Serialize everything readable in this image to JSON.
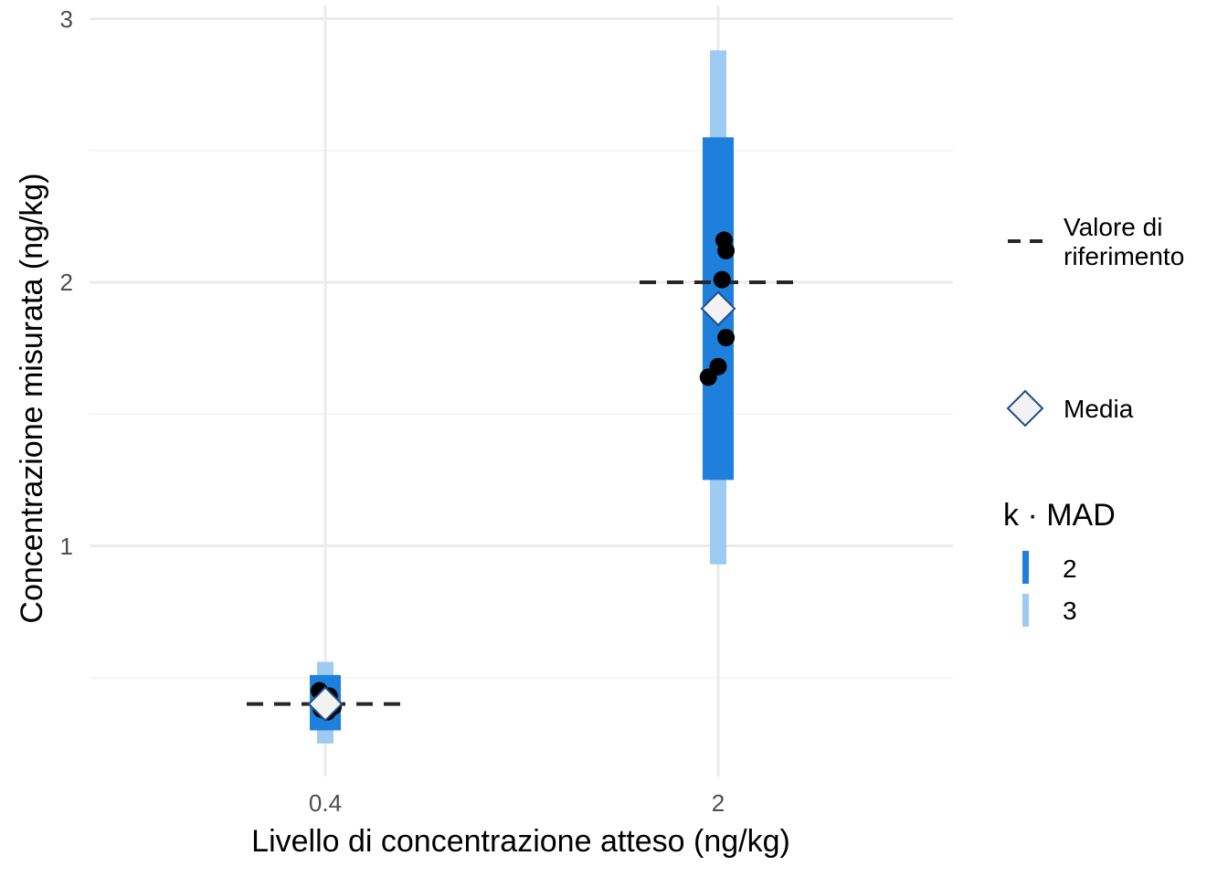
{
  "chart_data": {
    "type": "scatter",
    "xlabel": "Livello di concentrazione atteso (ng/kg)",
    "ylabel": "Concentrazione misurata (ng/kg)",
    "categories": [
      "0.4",
      "2"
    ],
    "y_ticks": [
      "1",
      "2",
      "3"
    ],
    "ylim": [
      0.15,
      3.0
    ],
    "grid": true,
    "legend_position": "right",
    "mad_bands": {
      "title": "k · MAD",
      "levels": [
        {
          "label": "2",
          "color": "#1e7fdc"
        },
        {
          "label": "3",
          "color": "#9ecbf2"
        }
      ]
    },
    "groups": [
      {
        "category": "0.4",
        "reference": 0.4,
        "mean": 0.4,
        "band_k2": [
          0.3,
          0.51
        ],
        "band_k3": [
          0.25,
          0.56
        ],
        "points": [
          {
            "dx": -0.03,
            "y": 0.45
          },
          {
            "dx": 0.02,
            "y": 0.43
          },
          {
            "dx": 0.04,
            "y": 0.39
          },
          {
            "dx": -0.02,
            "y": 0.38
          },
          {
            "dx": 0.01,
            "y": 0.37
          }
        ]
      },
      {
        "category": "2",
        "reference": 2.0,
        "mean": 1.9,
        "band_k2": [
          1.25,
          2.55
        ],
        "band_k3": [
          0.93,
          2.88
        ],
        "points": [
          {
            "dx": 0.03,
            "y": 2.16
          },
          {
            "dx": 0.04,
            "y": 2.12
          },
          {
            "dx": 0.02,
            "y": 2.01
          },
          {
            "dx": 0.04,
            "y": 1.79
          },
          {
            "dx": 0.0,
            "y": 1.68
          },
          {
            "dx": -0.05,
            "y": 1.64
          }
        ]
      }
    ],
    "legend": {
      "reference_label_1": "Valore di",
      "reference_label_2": "riferimento",
      "mean_label": "Media"
    },
    "colors": {
      "band_k2": "#1e7fdc",
      "band_k3": "#9ecbf2",
      "point": "#000000",
      "mean_fill": "#f2f2f2",
      "mean_stroke": "#1f4e89",
      "reference": "#262626",
      "grid_major": "#ebebeb",
      "grid_minor": "#f2f2f2"
    }
  }
}
